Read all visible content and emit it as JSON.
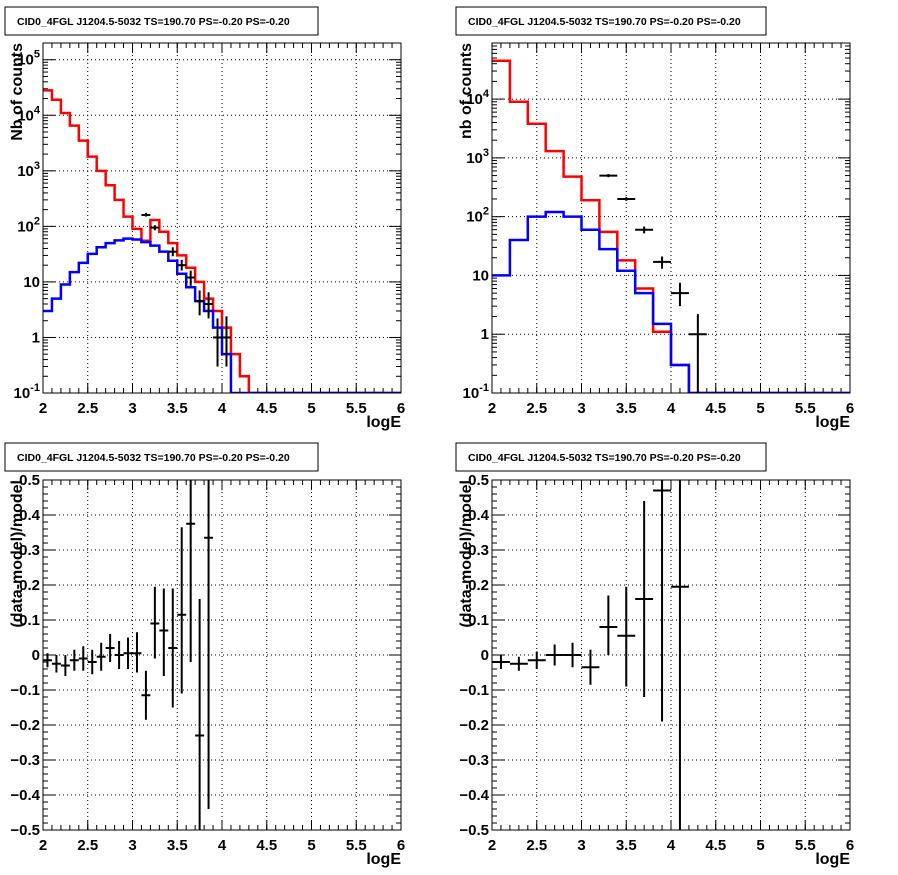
{
  "chart_data": [
    {
      "type": "line",
      "title": "CID0_4FGL J1204.5-5032 TS=190.70 PS=-0.20 PS=-0.20",
      "xlabel": "logE",
      "ylabel": "Nb of counts",
      "scale_y": "log",
      "xlim": [
        2,
        6
      ],
      "ylim": [
        0.1,
        200000
      ],
      "grid": true,
      "x_ticks": [
        "2",
        "2.5",
        "3",
        "3.5",
        "4",
        "4.5",
        "5",
        "5.5",
        "6"
      ],
      "y_ticks": [
        {
          "v": 0.1,
          "label": "10",
          "sup": "-1"
        },
        {
          "v": 1,
          "label": "1",
          "sup": ""
        },
        {
          "v": 10,
          "label": "10",
          "sup": ""
        },
        {
          "v": 100,
          "label": "10",
          "sup": "2"
        },
        {
          "v": 1000,
          "label": "10",
          "sup": "3"
        },
        {
          "v": 10000,
          "label": "10",
          "sup": "4"
        },
        {
          "v": 100000,
          "label": "10",
          "sup": "5"
        }
      ],
      "bin_edges": [
        2.0,
        2.1,
        2.2,
        2.3,
        2.4,
        2.5,
        2.6,
        2.7,
        2.8,
        2.9,
        3.0,
        3.1,
        3.2,
        3.3,
        3.4,
        3.5,
        3.6,
        3.7,
        3.8,
        3.9,
        4.0,
        4.1,
        4.2,
        4.3,
        4.4,
        4.5,
        4.6,
        4.7,
        4.8,
        4.9,
        5.0,
        5.1,
        5.2,
        5.3,
        5.4,
        5.5,
        5.6,
        5.7,
        5.8,
        5.9,
        6.0
      ],
      "series": [
        {
          "color": "#ff0000",
          "style": "step",
          "values": [
            28000,
            19000,
            11000,
            6500,
            3500,
            1800,
            1000,
            550,
            300,
            150,
            90,
            55,
            130,
            80,
            50,
            30,
            18,
            10,
            5,
            3,
            1.5,
            0.5,
            0.2,
            0.1,
            0.1,
            0.1,
            0.1,
            0.1,
            0.1,
            0.1,
            0.1,
            0.1,
            0.1,
            0.1,
            0.1,
            0.1,
            0.1,
            0.1,
            0.1,
            0.1
          ]
        },
        {
          "color": "#0000ff",
          "style": "step",
          "values": [
            3,
            5,
            9,
            15,
            22,
            32,
            42,
            50,
            56,
            60,
            58,
            52,
            45,
            35,
            24,
            14,
            8,
            4.5,
            3,
            1.5,
            0.5,
            0.1,
            0.1,
            0.1,
            0.1,
            0.1,
            0.1,
            0.1,
            0.1,
            0.1,
            0.1,
            0.1,
            0.1,
            0.1,
            0.1,
            0.1,
            0.1,
            0.1,
            0.1,
            0.1
          ]
        },
        {
          "color": "#000000",
          "style": "errorbar",
          "points": [
            {
              "x": 3.15,
              "y": 160,
              "xerr": 0.05,
              "ylo": 150,
              "yhi": 175
            },
            {
              "x": 3.25,
              "y": 95,
              "xerr": 0.05,
              "ylo": 85,
              "yhi": 105
            },
            {
              "x": 3.45,
              "y": 35,
              "xerr": 0.05,
              "ylo": 29,
              "yhi": 42
            },
            {
              "x": 3.55,
              "y": 20,
              "xerr": 0.05,
              "ylo": 16,
              "yhi": 25
            },
            {
              "x": 3.65,
              "y": 12,
              "xerr": 0.05,
              "ylo": 8.5,
              "yhi": 16
            },
            {
              "x": 3.75,
              "y": 4.5,
              "xerr": 0.05,
              "ylo": 2.5,
              "yhi": 7
            },
            {
              "x": 3.85,
              "y": 4,
              "xerr": 0.05,
              "ylo": 2.2,
              "yhi": 6.5
            },
            {
              "x": 3.95,
              "y": 1,
              "xerr": 0.05,
              "ylo": 0.3,
              "yhi": 2.2
            },
            {
              "x": 4.05,
              "y": 1,
              "xerr": 0.05,
              "ylo": 0.3,
              "yhi": 2.4
            }
          ]
        }
      ]
    },
    {
      "type": "line",
      "title": "CID0_4FGL J1204.5-5032 TS=190.70 PS=-0.20 PS=-0.20",
      "xlabel": "logE",
      "ylabel": "nb of counts",
      "scale_y": "log",
      "xlim": [
        2,
        6
      ],
      "ylim": [
        0.1,
        90000
      ],
      "grid": true,
      "x_ticks": [
        "2",
        "2.5",
        "3",
        "3.5",
        "4",
        "4.5",
        "5",
        "5.5",
        "6"
      ],
      "y_ticks": [
        {
          "v": 0.1,
          "label": "10",
          "sup": "-1"
        },
        {
          "v": 1,
          "label": "1",
          "sup": ""
        },
        {
          "v": 10,
          "label": "10",
          "sup": ""
        },
        {
          "v": 100,
          "label": "10",
          "sup": "2"
        },
        {
          "v": 1000,
          "label": "10",
          "sup": "3"
        },
        {
          "v": 10000,
          "label": "10",
          "sup": "4"
        }
      ],
      "bin_edges": [
        2.0,
        2.2,
        2.4,
        2.6,
        2.8,
        3.0,
        3.2,
        3.4,
        3.6,
        3.8,
        4.0,
        4.2,
        4.4,
        4.6,
        4.8,
        5.0,
        5.2,
        5.4,
        5.6,
        5.8,
        6.0
      ],
      "series": [
        {
          "color": "#ff0000",
          "style": "step",
          "values": [
            45000,
            9000,
            3800,
            1300,
            480,
            190,
            55,
            18,
            6,
            1.1,
            0.3,
            0.1,
            0.1,
            0.1,
            0.1,
            0.1,
            0.1,
            0.1,
            0.1,
            0.1
          ]
        },
        {
          "color": "#0000ff",
          "style": "step",
          "values": [
            10,
            40,
            100,
            120,
            100,
            60,
            28,
            12,
            5,
            1.5,
            0.3,
            0.1,
            0.1,
            0.1,
            0.1,
            0.1,
            0.1,
            0.1,
            0.1,
            0.1
          ]
        },
        {
          "color": "#000000",
          "style": "errorbar",
          "points": [
            {
              "x": 3.3,
              "y": 500,
              "xerr": 0.1,
              "ylo": 470,
              "yhi": 530
            },
            {
              "x": 3.5,
              "y": 200,
              "xerr": 0.1,
              "ylo": 186,
              "yhi": 215
            },
            {
              "x": 3.7,
              "y": 60,
              "xerr": 0.1,
              "ylo": 52,
              "yhi": 68
            },
            {
              "x": 3.9,
              "y": 17,
              "xerr": 0.1,
              "ylo": 13,
              "yhi": 21
            },
            {
              "x": 4.1,
              "y": 5,
              "xerr": 0.1,
              "ylo": 3,
              "yhi": 7.5
            },
            {
              "x": 4.3,
              "y": 1,
              "xerr": 0.1,
              "ylo": 0.1,
              "yhi": 2.2
            }
          ]
        }
      ]
    },
    {
      "type": "scatter",
      "title": "CID0_4FGL J1204.5-5032 TS=190.70 PS=-0.20 PS=-0.20",
      "xlabel": "logE",
      "ylabel": "(data-model)/model",
      "scale_y": "linear",
      "xlim": [
        2,
        6
      ],
      "ylim": [
        -0.5,
        0.5
      ],
      "grid": true,
      "x_ticks": [
        "2",
        "2.5",
        "3",
        "3.5",
        "4",
        "4.5",
        "5",
        "5.5",
        "6"
      ],
      "y_ticks": [
        {
          "v": -0.5,
          "label": "−0.5",
          "sup": ""
        },
        {
          "v": -0.4,
          "label": "−0.4",
          "sup": ""
        },
        {
          "v": -0.3,
          "label": "−0.3",
          "sup": ""
        },
        {
          "v": -0.2,
          "label": "−0.2",
          "sup": ""
        },
        {
          "v": -0.1,
          "label": "−0.1",
          "sup": ""
        },
        {
          "v": 0,
          "label": "0",
          "sup": ""
        },
        {
          "v": 0.1,
          "label": "0.1",
          "sup": ""
        },
        {
          "v": 0.2,
          "label": "0.2",
          "sup": ""
        },
        {
          "v": 0.3,
          "label": "0.3",
          "sup": ""
        },
        {
          "v": 0.4,
          "label": "0.4",
          "sup": ""
        },
        {
          "v": 0.5,
          "label": "0.5",
          "sup": ""
        }
      ],
      "series": [
        {
          "color": "#000000",
          "style": "errorbar",
          "points": [
            {
              "x": 2.05,
              "y": -0.015,
              "xerr": 0.05,
              "ylo": -0.035,
              "yhi": 0.005
            },
            {
              "x": 2.15,
              "y": -0.025,
              "xerr": 0.05,
              "ylo": -0.05,
              "yhi": 0.0
            },
            {
              "x": 2.25,
              "y": -0.03,
              "xerr": 0.05,
              "ylo": -0.06,
              "yhi": 0.0
            },
            {
              "x": 2.35,
              "y": -0.015,
              "xerr": 0.05,
              "ylo": -0.045,
              "yhi": 0.015
            },
            {
              "x": 2.45,
              "y": -0.01,
              "xerr": 0.05,
              "ylo": -0.045,
              "yhi": 0.025
            },
            {
              "x": 2.55,
              "y": -0.02,
              "xerr": 0.05,
              "ylo": -0.055,
              "yhi": 0.015
            },
            {
              "x": 2.65,
              "y": -0.005,
              "xerr": 0.05,
              "ylo": -0.045,
              "yhi": 0.035
            },
            {
              "x": 2.75,
              "y": 0.02,
              "xerr": 0.05,
              "ylo": -0.02,
              "yhi": 0.06
            },
            {
              "x": 2.85,
              "y": 0.0,
              "xerr": 0.05,
              "ylo": -0.04,
              "yhi": 0.04
            },
            {
              "x": 2.95,
              "y": 0.005,
              "xerr": 0.05,
              "ylo": -0.04,
              "yhi": 0.05
            },
            {
              "x": 3.05,
              "y": 0.005,
              "xerr": 0.05,
              "ylo": -0.05,
              "yhi": 0.065
            },
            {
              "x": 3.15,
              "y": -0.115,
              "xerr": 0.05,
              "ylo": -0.185,
              "yhi": -0.045
            },
            {
              "x": 3.25,
              "y": 0.09,
              "xerr": 0.05,
              "ylo": -0.01,
              "yhi": 0.195
            },
            {
              "x": 3.35,
              "y": 0.07,
              "xerr": 0.05,
              "ylo": -0.06,
              "yhi": 0.19
            },
            {
              "x": 3.45,
              "y": 0.02,
              "xerr": 0.05,
              "ylo": -0.15,
              "yhi": 0.19
            },
            {
              "x": 3.55,
              "y": 0.115,
              "xerr": 0.05,
              "ylo": -0.11,
              "yhi": 0.365
            },
            {
              "x": 3.65,
              "y": 0.375,
              "xerr": 0.05,
              "ylo": -0.02,
              "yhi": 0.5
            },
            {
              "x": 3.75,
              "y": -0.23,
              "xerr": 0.05,
              "ylo": -0.5,
              "yhi": 0.16
            },
            {
              "x": 3.85,
              "y": 0.335,
              "xerr": 0.05,
              "ylo": -0.44,
              "yhi": 0.5
            }
          ]
        }
      ]
    },
    {
      "type": "scatter",
      "title": "CID0_4FGL J1204.5-5032 TS=190.70 PS=-0.20 PS=-0.20",
      "xlabel": "logE",
      "ylabel": "(data-model)/model",
      "scale_y": "linear",
      "xlim": [
        2,
        6
      ],
      "ylim": [
        -0.5,
        0.5
      ],
      "grid": true,
      "x_ticks": [
        "2",
        "2.5",
        "3",
        "3.5",
        "4",
        "4.5",
        "5",
        "5.5",
        "6"
      ],
      "y_ticks": [
        {
          "v": -0.5,
          "label": "−0.5",
          "sup": ""
        },
        {
          "v": -0.4,
          "label": "−0.4",
          "sup": ""
        },
        {
          "v": -0.3,
          "label": "−0.3",
          "sup": ""
        },
        {
          "v": -0.2,
          "label": "−0.2",
          "sup": ""
        },
        {
          "v": -0.1,
          "label": "−0.1",
          "sup": ""
        },
        {
          "v": 0,
          "label": "0",
          "sup": ""
        },
        {
          "v": 0.1,
          "label": "0.1",
          "sup": ""
        },
        {
          "v": 0.2,
          "label": "0.2",
          "sup": ""
        },
        {
          "v": 0.3,
          "label": "0.3",
          "sup": ""
        },
        {
          "v": 0.4,
          "label": "0.4",
          "sup": ""
        },
        {
          "v": 0.5,
          "label": "0.5",
          "sup": ""
        }
      ],
      "series": [
        {
          "color": "#000000",
          "style": "errorbar",
          "points": [
            {
              "x": 2.1,
              "y": -0.02,
              "xerr": 0.1,
              "ylo": -0.04,
              "yhi": 0.0
            },
            {
              "x": 2.3,
              "y": -0.025,
              "xerr": 0.1,
              "ylo": -0.045,
              "yhi": -0.005
            },
            {
              "x": 2.5,
              "y": -0.015,
              "xerr": 0.1,
              "ylo": -0.04,
              "yhi": 0.01
            },
            {
              "x": 2.7,
              "y": 0.0,
              "xerr": 0.1,
              "ylo": -0.03,
              "yhi": 0.03
            },
            {
              "x": 2.9,
              "y": 0.0,
              "xerr": 0.1,
              "ylo": -0.035,
              "yhi": 0.035
            },
            {
              "x": 3.1,
              "y": -0.035,
              "xerr": 0.1,
              "ylo": -0.085,
              "yhi": 0.015
            },
            {
              "x": 3.3,
              "y": 0.08,
              "xerr": 0.1,
              "ylo": 0.0,
              "yhi": 0.17
            },
            {
              "x": 3.5,
              "y": 0.055,
              "xerr": 0.1,
              "ylo": -0.09,
              "yhi": 0.195
            },
            {
              "x": 3.7,
              "y": 0.16,
              "xerr": 0.1,
              "ylo": -0.12,
              "yhi": 0.44
            },
            {
              "x": 3.9,
              "y": 0.47,
              "xerr": 0.1,
              "ylo": -0.19,
              "yhi": 0.5
            },
            {
              "x": 4.1,
              "y": 0.195,
              "xerr": 0.1,
              "ylo": -0.5,
              "yhi": 0.5
            }
          ]
        }
      ]
    }
  ]
}
